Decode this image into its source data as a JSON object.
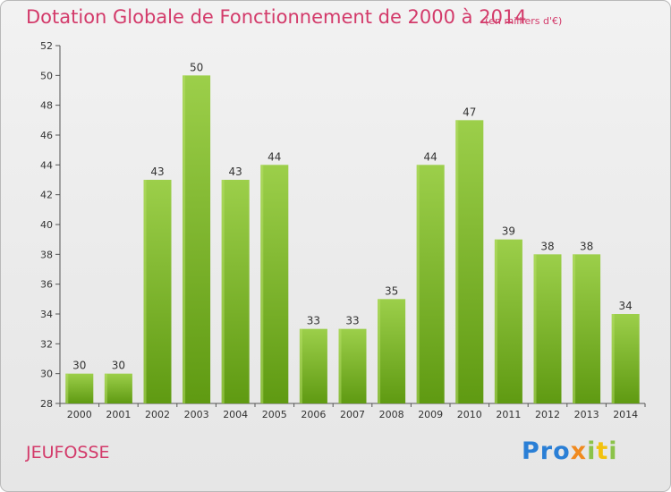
{
  "title": "Dotation Globale de Fonctionnement de 2000 à 2014",
  "unit_note": "(en milliers d'€)",
  "commune": "JEUFOSSE",
  "logo": {
    "part1": "Pro",
    "part2": "x",
    "part3": "i",
    "part4": "t",
    "part5": "i"
  },
  "colors": {
    "title": "#d33a6a",
    "bar_top": "#9ccf4a",
    "bar_bottom": "#5f9a12",
    "axis": "#555555"
  },
  "chart_data": {
    "type": "bar",
    "categories": [
      "2000",
      "2001",
      "2002",
      "2003",
      "2004",
      "2005",
      "2006",
      "2007",
      "2008",
      "2009",
      "2010",
      "2011",
      "2012",
      "2013",
      "2014"
    ],
    "values": [
      30,
      30,
      43,
      50,
      43,
      44,
      33,
      33,
      35,
      44,
      47,
      39,
      38,
      38,
      34
    ],
    "title": "Dotation Globale de Fonctionnement de 2000 à 2014",
    "xlabel": "",
    "ylabel": "",
    "ylim": [
      28,
      52
    ],
    "yticks": [
      28,
      30,
      32,
      34,
      36,
      38,
      40,
      42,
      44,
      46,
      48,
      50,
      52
    ],
    "grid": false,
    "data_labels": true
  }
}
